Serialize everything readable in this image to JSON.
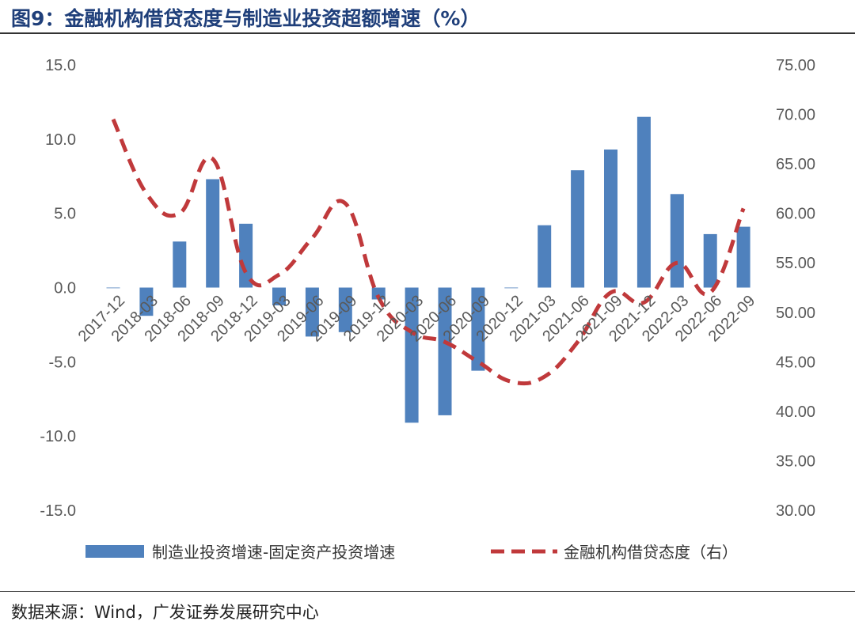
{
  "title": "图9：金融机构借贷态度与制造业投资超额增速（%）",
  "source": "数据来源：Wind，广发证券发展研究中心",
  "colors": {
    "bar": "#4f81bd",
    "line": "#c0393b"
  },
  "chart_data": {
    "type": "bar+line",
    "categories": [
      "2017-12",
      "2018-03",
      "2018-06",
      "2018-09",
      "2018-12",
      "2019-03",
      "2019-06",
      "2019-09",
      "2019-12",
      "2020-03",
      "2020-06",
      "2020-09",
      "2020-12",
      "2021-03",
      "2021-06",
      "2021-09",
      "2021-12",
      "2022-03",
      "2022-06",
      "2022-09"
    ],
    "y_left": {
      "min": -15,
      "max": 15,
      "ticks": [
        "15.0",
        "10.0",
        "5.0",
        "0.0",
        "-5.0",
        "-10.0",
        "-15.0"
      ]
    },
    "y_right": {
      "min": 30,
      "max": 75,
      "ticks": [
        "75.00",
        "70.00",
        "65.00",
        "60.00",
        "55.00",
        "50.00",
        "45.00",
        "40.00",
        "35.00",
        "30.00"
      ]
    },
    "series": [
      {
        "name": "制造业投资增速-固定资产投资增速",
        "type": "bar",
        "axis": "left",
        "values": [
          0.0,
          -1.9,
          3.1,
          7.3,
          4.3,
          -1.2,
          -3.3,
          -3.0,
          -0.8,
          -9.1,
          -8.6,
          -5.6,
          0.0,
          4.2,
          7.9,
          9.3,
          11.5,
          6.3,
          3.6,
          4.1
        ]
      },
      {
        "name": "金融机构借贷态度（右）",
        "type": "line",
        "axis": "right",
        "style": "dashed",
        "values": [
          69.5,
          62.0,
          60.0,
          65.5,
          54.0,
          53.8,
          57.5,
          61.0,
          51.5,
          48.0,
          47.0,
          45.0,
          43.0,
          43.5,
          47.0,
          52.0,
          51.0,
          55.0,
          52.0,
          60.5
        ]
      }
    ],
    "legend_position": "bottom",
    "grid": false
  }
}
